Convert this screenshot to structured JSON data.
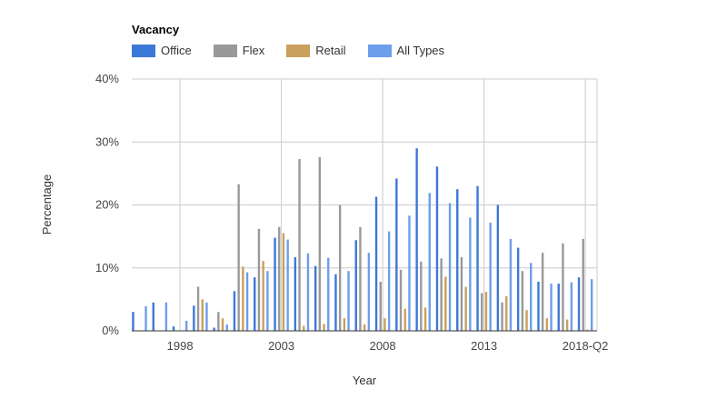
{
  "chart_data": {
    "type": "bar",
    "title": "Vacancy",
    "xlabel": "Year",
    "ylabel": "Percentage",
    "ylim": [
      0,
      40
    ],
    "yticks": [
      0,
      10,
      20,
      30,
      40
    ],
    "ytick_labels": [
      "0%",
      "10%",
      "20%",
      "30%",
      "40%"
    ],
    "grid": true,
    "legend_position": "top-left",
    "categories": [
      "1996",
      "1997",
      "1998",
      "1999",
      "2000",
      "2001",
      "2002",
      "2003",
      "2004",
      "2005",
      "2006",
      "2007",
      "2008",
      "2009",
      "2010",
      "2011",
      "2012",
      "2013",
      "2014",
      "2015",
      "2016",
      "2017",
      "2018-Q2"
    ],
    "xtick_labels": [
      "1998",
      "2003",
      "2008",
      "2013",
      "2018-Q2"
    ],
    "series": [
      {
        "name": "Office",
        "color": "#3c78d8",
        "values": [
          3.0,
          4.5,
          0.7,
          4.0,
          0.5,
          6.3,
          8.5,
          14.8,
          11.7,
          10.3,
          9.0,
          14.4,
          21.3,
          24.2,
          29.0,
          26.1,
          22.5,
          23.0,
          20.0,
          13.2,
          7.8,
          7.5,
          8.5
        ]
      },
      {
        "name": "Flex",
        "color": "#999999",
        "values": [
          0,
          0,
          0,
          7.0,
          3.0,
          23.3,
          16.2,
          16.5,
          27.3,
          27.6,
          20.0,
          16.5,
          7.8,
          9.7,
          11.0,
          11.5,
          11.7,
          6.0,
          4.5,
          9.5,
          12.4,
          13.9,
          14.6
        ]
      },
      {
        "name": "Retail",
        "color": "#c9a05c",
        "values": [
          0,
          0,
          0,
          5.0,
          2.0,
          10.2,
          11.1,
          15.5,
          0.8,
          1.1,
          2.0,
          1.0,
          2.0,
          3.5,
          3.7,
          8.6,
          7.0,
          6.2,
          5.5,
          3.3,
          2.0,
          1.8,
          0.2
        ]
      },
      {
        "name": "All Types",
        "color": "#6d9eeb",
        "values": [
          3.9,
          4.5,
          1.6,
          4.5,
          1.0,
          9.3,
          9.5,
          14.5,
          12.3,
          11.6,
          9.5,
          12.4,
          15.8,
          18.3,
          21.9,
          20.3,
          18.0,
          17.2,
          14.6,
          10.8,
          7.5,
          7.7,
          8.2
        ]
      }
    ]
  }
}
